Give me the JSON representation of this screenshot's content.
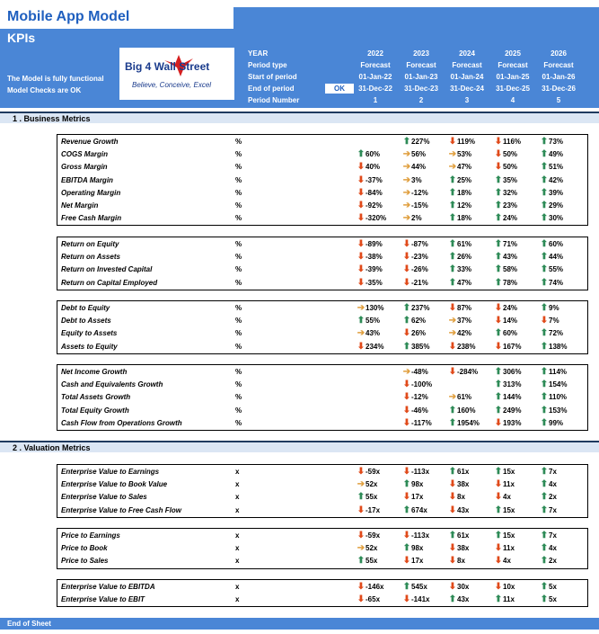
{
  "header": {
    "title": "Mobile App Model",
    "subtitle": "KPIs",
    "status1": "The Model is fully functional",
    "status2": "Model Checks are OK",
    "logo_text": "Big 4 Wall Street",
    "logo_tagline": "Believe, Conceive, Excel",
    "ok_label": "OK",
    "labels": [
      "YEAR",
      "Period type",
      "Start of period",
      "End of period",
      "Period Number"
    ],
    "years": [
      "2022",
      "2023",
      "2024",
      "2025",
      "2026"
    ],
    "period_type": [
      "Forecast",
      "Forecast",
      "Forecast",
      "Forecast",
      "Forecast"
    ],
    "start": [
      "01-Jan-22",
      "01-Jan-23",
      "01-Jan-24",
      "01-Jan-25",
      "01-Jan-26"
    ],
    "end": [
      "31-Dec-22",
      "31-Dec-23",
      "31-Dec-24",
      "31-Dec-25",
      "31-Dec-26"
    ],
    "period_num": [
      "1",
      "2",
      "3",
      "4",
      "5"
    ]
  },
  "sections": [
    "1 . Business Metrics",
    "2 . Valuation Metrics"
  ],
  "footer": "End of Sheet",
  "groups": [
    {
      "rows": [
        {
          "label": "Revenue Growth",
          "unit": "%",
          "cells": [
            [
              "",
              ""
            ],
            [
              "up",
              "227%"
            ],
            [
              "down",
              "119%"
            ],
            [
              "down",
              "116%"
            ],
            [
              "up",
              "73%"
            ]
          ]
        },
        {
          "label": "COGS Margin",
          "unit": "%",
          "cells": [
            [
              "up",
              "60%"
            ],
            [
              "side",
              "56%"
            ],
            [
              "side",
              "53%"
            ],
            [
              "down",
              "50%"
            ],
            [
              "up",
              "49%"
            ]
          ]
        },
        {
          "label": "Gross Margin",
          "unit": "%",
          "cells": [
            [
              "down",
              "40%"
            ],
            [
              "side",
              "44%"
            ],
            [
              "side",
              "47%"
            ],
            [
              "down",
              "50%"
            ],
            [
              "up",
              "51%"
            ]
          ]
        },
        {
          "label": "EBITDA Margin",
          "unit": "%",
          "cells": [
            [
              "down",
              "-37%"
            ],
            [
              "side",
              "3%"
            ],
            [
              "up",
              "25%"
            ],
            [
              "up",
              "35%"
            ],
            [
              "up",
              "42%"
            ]
          ]
        },
        {
          "label": "Operating Margin",
          "unit": "%",
          "cells": [
            [
              "down",
              "-84%"
            ],
            [
              "side",
              "-12%"
            ],
            [
              "up",
              "18%"
            ],
            [
              "up",
              "32%"
            ],
            [
              "up",
              "39%"
            ]
          ]
        },
        {
          "label": "Net Margin",
          "unit": "%",
          "cells": [
            [
              "down",
              "-92%"
            ],
            [
              "side",
              "-15%"
            ],
            [
              "up",
              "12%"
            ],
            [
              "up",
              "23%"
            ],
            [
              "up",
              "29%"
            ]
          ]
        },
        {
          "label": "Free Cash Margin",
          "unit": "%",
          "cells": [
            [
              "down",
              "-320%"
            ],
            [
              "side",
              "2%"
            ],
            [
              "up",
              "18%"
            ],
            [
              "up",
              "24%"
            ],
            [
              "up",
              "30%"
            ]
          ]
        }
      ]
    },
    {
      "rows": [
        {
          "label": "Return on Equity",
          "unit": "%",
          "cells": [
            [
              "down",
              "-89%"
            ],
            [
              "down",
              "-87%"
            ],
            [
              "up",
              "61%"
            ],
            [
              "up",
              "71%"
            ],
            [
              "up",
              "60%"
            ]
          ]
        },
        {
          "label": "Return on Assets",
          "unit": "%",
          "cells": [
            [
              "down",
              "-38%"
            ],
            [
              "down",
              "-23%"
            ],
            [
              "up",
              "26%"
            ],
            [
              "up",
              "43%"
            ],
            [
              "up",
              "44%"
            ]
          ]
        },
        {
          "label": "Return on Invested Capital",
          "unit": "%",
          "cells": [
            [
              "down",
              "-39%"
            ],
            [
              "down",
              "-26%"
            ],
            [
              "up",
              "33%"
            ],
            [
              "up",
              "58%"
            ],
            [
              "up",
              "55%"
            ]
          ]
        },
        {
          "label": "Return on Capital Employed",
          "unit": "%",
          "cells": [
            [
              "down",
              "-35%"
            ],
            [
              "down",
              "-21%"
            ],
            [
              "up",
              "47%"
            ],
            [
              "up",
              "78%"
            ],
            [
              "up",
              "74%"
            ]
          ]
        }
      ]
    },
    {
      "rows": [
        {
          "label": "Debt to Equity",
          "unit": "%",
          "cells": [
            [
              "side",
              "130%"
            ],
            [
              "up",
              "237%"
            ],
            [
              "down",
              "87%"
            ],
            [
              "down",
              "24%"
            ],
            [
              "up",
              "9%"
            ]
          ]
        },
        {
          "label": "Debt to Assets",
          "unit": "%",
          "cells": [
            [
              "up",
              "55%"
            ],
            [
              "up",
              "62%"
            ],
            [
              "side",
              "37%"
            ],
            [
              "down",
              "14%"
            ],
            [
              "down",
              "7%"
            ]
          ]
        },
        {
          "label": "Equity to Assets",
          "unit": "%",
          "cells": [
            [
              "side",
              "43%"
            ],
            [
              "down",
              "26%"
            ],
            [
              "side",
              "42%"
            ],
            [
              "up",
              "60%"
            ],
            [
              "up",
              "72%"
            ]
          ]
        },
        {
          "label": "Assets to Equity",
          "unit": "%",
          "cells": [
            [
              "down",
              "234%"
            ],
            [
              "up",
              "385%"
            ],
            [
              "down",
              "238%"
            ],
            [
              "down",
              "167%"
            ],
            [
              "up",
              "138%"
            ]
          ]
        }
      ]
    },
    {
      "rows": [
        {
          "label": "Net Income Growth",
          "unit": "%",
          "cells": [
            [
              "",
              ""
            ],
            [
              "side",
              "-48%"
            ],
            [
              "down",
              "-284%"
            ],
            [
              "up",
              "306%"
            ],
            [
              "up",
              "114%"
            ]
          ]
        },
        {
          "label": "Cash and Equivalents Growth",
          "unit": "%",
          "cells": [
            [
              "",
              ""
            ],
            [
              "down",
              "-100%"
            ],
            [
              "",
              ""
            ],
            [
              "up",
              "313%"
            ],
            [
              "up",
              "154%"
            ]
          ]
        },
        {
          "label": "Total Assets Growth",
          "unit": "%",
          "cells": [
            [
              "",
              ""
            ],
            [
              "down",
              "-12%"
            ],
            [
              "side",
              "61%"
            ],
            [
              "up",
              "144%"
            ],
            [
              "up",
              "110%"
            ]
          ]
        },
        {
          "label": "Total Equity Growth",
          "unit": "%",
          "cells": [
            [
              "",
              ""
            ],
            [
              "down",
              "-46%"
            ],
            [
              "up",
              "160%"
            ],
            [
              "up",
              "249%"
            ],
            [
              "up",
              "153%"
            ]
          ]
        },
        {
          "label": "Cash Flow from Operations Growth",
          "unit": "%",
          "cells": [
            [
              "",
              ""
            ],
            [
              "down",
              "-117%"
            ],
            [
              "up",
              "1954%"
            ],
            [
              "down",
              "193%"
            ],
            [
              "up",
              "99%"
            ]
          ]
        }
      ]
    },
    {
      "rows": [
        {
          "label": "Enterprise Value to Earnings",
          "unit": "x",
          "cells": [
            [
              "down",
              "-59x"
            ],
            [
              "down",
              "-113x"
            ],
            [
              "up",
              "61x"
            ],
            [
              "up",
              "15x"
            ],
            [
              "up",
              "7x"
            ]
          ]
        },
        {
          "label": "Enterprise Value to Book Value",
          "unit": "x",
          "cells": [
            [
              "side",
              "52x"
            ],
            [
              "up",
              "98x"
            ],
            [
              "down",
              "38x"
            ],
            [
              "down",
              "11x"
            ],
            [
              "up",
              "4x"
            ]
          ]
        },
        {
          "label": "Enterprise Value to Sales",
          "unit": "x",
          "cells": [
            [
              "up",
              "55x"
            ],
            [
              "down",
              "17x"
            ],
            [
              "down",
              "8x"
            ],
            [
              "down",
              "4x"
            ],
            [
              "up",
              "2x"
            ]
          ]
        },
        {
          "label": "Enterprise Value to Free Cash Flow",
          "unit": "x",
          "cells": [
            [
              "down",
              "-17x"
            ],
            [
              "up",
              "674x"
            ],
            [
              "down",
              "43x"
            ],
            [
              "up",
              "15x"
            ],
            [
              "up",
              "7x"
            ]
          ]
        }
      ]
    },
    {
      "rows": [
        {
          "label": "Price to Earnings",
          "unit": "x",
          "cells": [
            [
              "down",
              "-59x"
            ],
            [
              "down",
              "-113x"
            ],
            [
              "up",
              "61x"
            ],
            [
              "up",
              "15x"
            ],
            [
              "up",
              "7x"
            ]
          ]
        },
        {
          "label": "Price to Book",
          "unit": "x",
          "cells": [
            [
              "side",
              "52x"
            ],
            [
              "up",
              "98x"
            ],
            [
              "down",
              "38x"
            ],
            [
              "down",
              "11x"
            ],
            [
              "up",
              "4x"
            ]
          ]
        },
        {
          "label": "Price to Sales",
          "unit": "x",
          "cells": [
            [
              "up",
              "55x"
            ],
            [
              "down",
              "17x"
            ],
            [
              "down",
              "8x"
            ],
            [
              "down",
              "4x"
            ],
            [
              "up",
              "2x"
            ]
          ]
        }
      ]
    },
    {
      "rows": [
        {
          "label": "Enterprise Value to EBITDA",
          "unit": "x",
          "cells": [
            [
              "down",
              "-146x"
            ],
            [
              "up",
              "545x"
            ],
            [
              "down",
              "30x"
            ],
            [
              "down",
              "10x"
            ],
            [
              "up",
              "5x"
            ]
          ]
        },
        {
          "label": "Enterprise Value to EBIT",
          "unit": "x",
          "cells": [
            [
              "down",
              "-65x"
            ],
            [
              "down",
              "-141x"
            ],
            [
              "up",
              "43x"
            ],
            [
              "up",
              "11x"
            ],
            [
              "up",
              "5x"
            ]
          ]
        }
      ]
    }
  ]
}
